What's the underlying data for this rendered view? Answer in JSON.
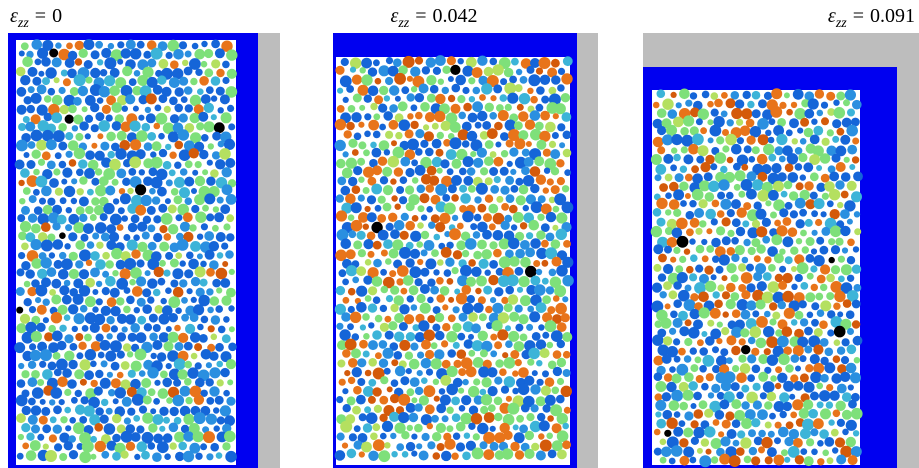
{
  "panels": [
    {
      "symbol": "ε",
      "subscript": "zz",
      "operator": "=",
      "value": "0"
    },
    {
      "symbol": "ε",
      "subscript": "zz",
      "operator": "=",
      "value": "0.042"
    },
    {
      "symbol": "ε",
      "subscript": "zz",
      "operator": "=",
      "value": "0.091"
    }
  ]
}
